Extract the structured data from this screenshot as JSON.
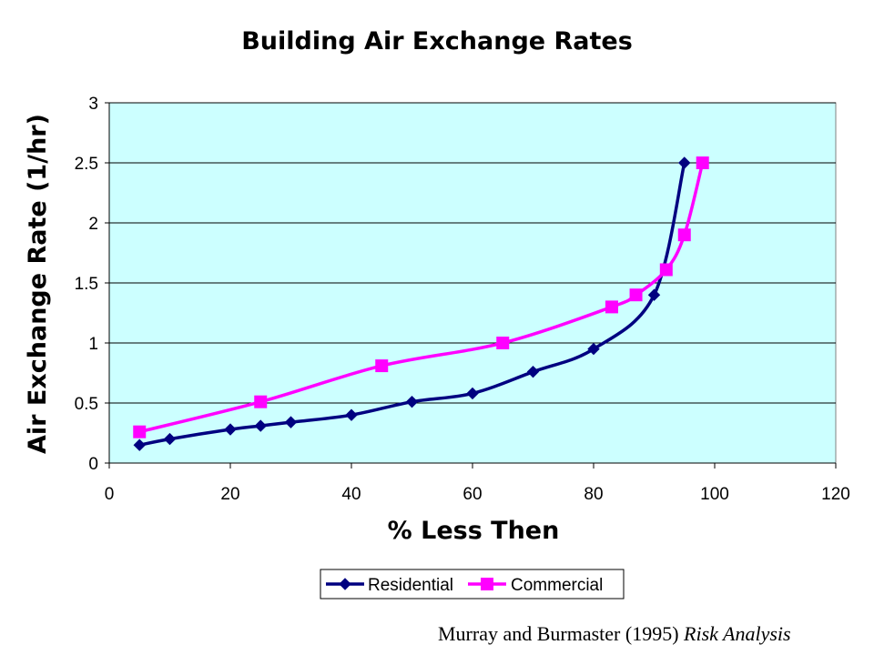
{
  "chart_data": {
    "type": "line",
    "title": "Building Air Exchange Rates",
    "xlabel": "% Less Then",
    "ylabel": "Air Exchange Rate (1/hr)",
    "xlim": [
      0,
      120
    ],
    "ylim": [
      0,
      3
    ],
    "xticks": [
      "0",
      "20",
      "40",
      "60",
      "80",
      "100",
      "120"
    ],
    "yticks": [
      "0",
      "0.5",
      "1",
      "1.5",
      "2",
      "2.5",
      "3"
    ],
    "grid": "horizontal",
    "plot_background": "#ccffff",
    "legend": "bottom",
    "series": [
      {
        "name": "Residential",
        "color": "#000080",
        "marker": "diamond",
        "x": [
          5,
          10,
          20,
          25,
          30,
          40,
          50,
          60,
          70,
          80,
          90,
          95
        ],
        "y": [
          0.15,
          0.2,
          0.28,
          0.31,
          0.34,
          0.4,
          0.51,
          0.58,
          0.76,
          0.95,
          1.4,
          2.5
        ]
      },
      {
        "name": "Commercial",
        "color": "#ff00ff",
        "marker": "square",
        "x": [
          5,
          25,
          45,
          65,
          83,
          87,
          92,
          95,
          98
        ],
        "y": [
          0.26,
          0.51,
          0.81,
          1.0,
          1.3,
          1.4,
          1.61,
          1.9,
          2.5
        ]
      }
    ]
  },
  "citation": {
    "authors": "Murray and Burmaster (1995)",
    "journal": "Risk Analysis"
  }
}
